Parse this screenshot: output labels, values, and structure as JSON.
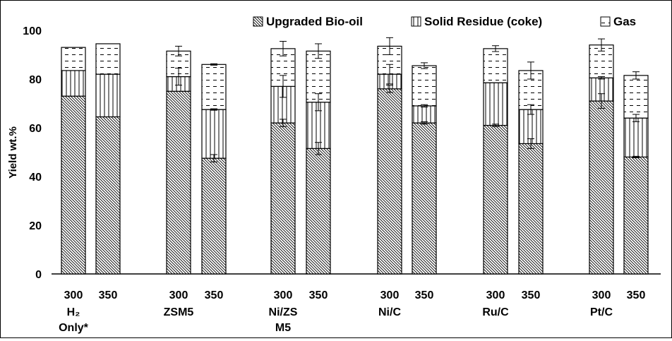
{
  "chart_data": {
    "type": "bar",
    "stacked": true,
    "title": "",
    "xlabel": "",
    "ylabel": "Yield wt.%",
    "ylim": [
      0,
      100
    ],
    "yticks": [
      0,
      20,
      40,
      60,
      80,
      100
    ],
    "grid": false,
    "legend_position": "top",
    "groups": [
      {
        "name": "H₂ Only*",
        "name_lines": [
          "H₂",
          "Only*"
        ]
      },
      {
        "name": "ZSM5",
        "name_lines": [
          "ZSM5"
        ]
      },
      {
        "name": "Ni/ZSM5",
        "name_lines": [
          "Ni/ZS",
          "M5"
        ]
      },
      {
        "name": "Ni/C",
        "name_lines": [
          "Ni/C"
        ]
      },
      {
        "name": "Ru/C",
        "name_lines": [
          "Ru/C"
        ]
      },
      {
        "name": "Pt/C",
        "name_lines": [
          "Pt/C"
        ]
      }
    ],
    "temperatures": [
      "300",
      "350"
    ],
    "categories": [
      "H₂ Only* 300",
      "H₂ Only* 350",
      "ZSM5 300",
      "ZSM5 350",
      "Ni/ZSM5 300",
      "Ni/ZSM5 350",
      "Ni/C 300",
      "Ni/C 350",
      "Ru/C 300",
      "Ru/C 350",
      "Pt/C 300",
      "Pt/C 350"
    ],
    "series": [
      {
        "name": "Upgraded Bio-oil",
        "pattern": "diagonal",
        "values": [
          73,
          64.5,
          75,
          47.5,
          62,
          51.5,
          76,
          62,
          61,
          53.5,
          71,
          48
        ],
        "errors": [
          0,
          0,
          0,
          1.5,
          1.5,
          2.5,
          1.5,
          0.5,
          0.5,
          2,
          3,
          0.3
        ]
      },
      {
        "name": "Solid Residue (coke)",
        "pattern": "vertical",
        "values": [
          10.5,
          17.5,
          6,
          20,
          15,
          19,
          6,
          7,
          17.5,
          14,
          9.5,
          16
        ],
        "errors": [
          0,
          0,
          3.5,
          0.3,
          4.5,
          3.5,
          4,
          0.5,
          0,
          2,
          0.5,
          1.5
        ]
      },
      {
        "name": "Gas",
        "pattern": "dashed",
        "values": [
          9.5,
          12.5,
          10.5,
          18.5,
          15.5,
          21,
          11.5,
          16.5,
          14,
          16,
          13.5,
          17.5
        ],
        "errors": [
          0,
          0,
          2,
          0.3,
          3,
          3,
          3.5,
          1.2,
          1.2,
          3.5,
          2.5,
          1.5
        ]
      }
    ]
  }
}
